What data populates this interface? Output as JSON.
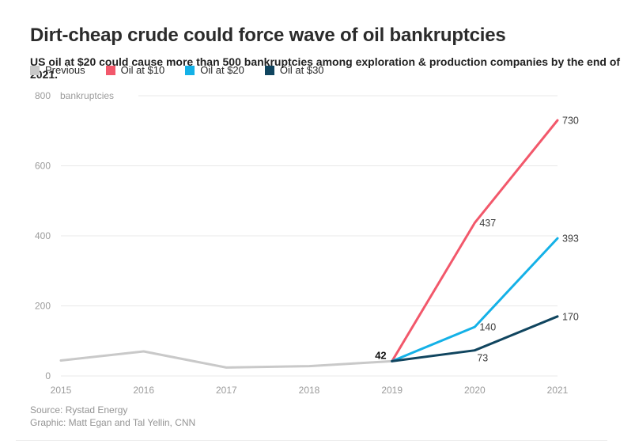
{
  "header": {
    "title": "Dirt-cheap crude could force wave of oil bankruptcies",
    "subtitle": "US oil at $20 could cause more than 500 bankruptcies among exploration & production companies by the end of 2021."
  },
  "legend": [
    {
      "label": "Previous",
      "color": "#c9c9c9"
    },
    {
      "label": "Oil at $10",
      "color": "#f2586b"
    },
    {
      "label": "Oil at $20",
      "color": "#14b1e7"
    },
    {
      "label": "Oil at $30",
      "color": "#10455f"
    }
  ],
  "chart_data": {
    "type": "line",
    "title": "Dirt-cheap crude could force wave of oil bankruptcies",
    "ylabel_unit": "bankruptcies",
    "x_ticks": [
      2015,
      2016,
      2017,
      2018,
      2019,
      2020,
      2021
    ],
    "y_ticks": [
      0,
      200,
      400,
      600,
      800
    ],
    "xlim": [
      2015,
      2021
    ],
    "ylim": [
      0,
      800
    ],
    "grid": "horizontal",
    "legend_position": "top",
    "series": [
      {
        "name": "Previous",
        "color": "#c9c9c9",
        "points": [
          [
            2015,
            44
          ],
          [
            2016,
            70
          ],
          [
            2017,
            24
          ],
          [
            2018,
            28
          ],
          [
            2019,
            42
          ]
        ],
        "labels": []
      },
      {
        "name": "Oil at $10",
        "color": "#f2586b",
        "points": [
          [
            2019,
            42
          ],
          [
            2020,
            437
          ],
          [
            2021,
            730
          ]
        ],
        "labels": [
          [
            2020,
            437,
            "437"
          ],
          [
            2021,
            730,
            "730"
          ]
        ]
      },
      {
        "name": "Oil at $20",
        "color": "#14b1e7",
        "points": [
          [
            2019,
            42
          ],
          [
            2020,
            140
          ],
          [
            2021,
            393
          ]
        ],
        "labels": [
          [
            2020,
            140,
            "140"
          ],
          [
            2021,
            393,
            "393"
          ]
        ]
      },
      {
        "name": "Oil at $30",
        "color": "#10455f",
        "points": [
          [
            2019,
            42
          ],
          [
            2020,
            73
          ],
          [
            2021,
            170
          ]
        ],
        "labels": [
          [
            2020,
            73,
            "73"
          ],
          [
            2021,
            170,
            "170"
          ]
        ]
      }
    ],
    "start_label": {
      "x": 2019,
      "y": 42,
      "text": "42"
    },
    "axis_text_color": "#9b9b9b",
    "gridline_color": "#e8e8e8",
    "data_label_color": "#3c3c3c"
  },
  "footer": {
    "source": "Source: Rystad Energy",
    "credit": "Graphic: Matt Egan and Tal Yellin, CNN"
  }
}
